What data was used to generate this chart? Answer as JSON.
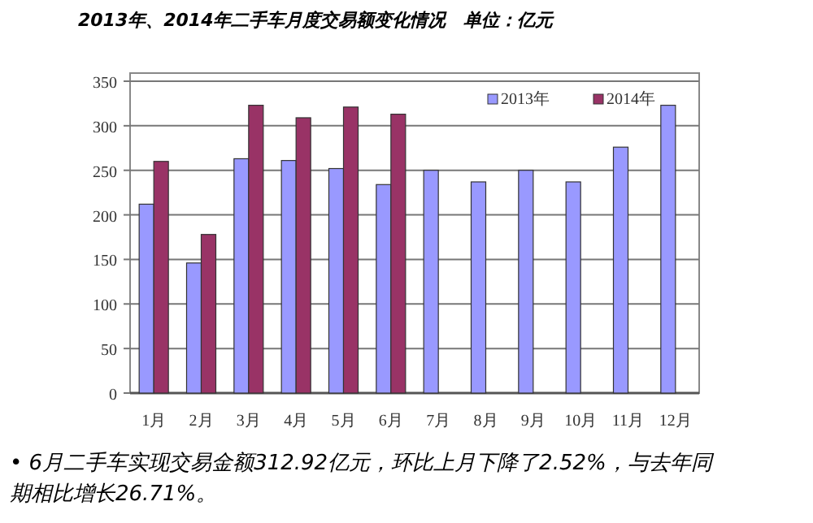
{
  "chart_data": {
    "type": "bar",
    "title": "2013年、2014年二手车月度交易额变化情况",
    "subtitle": "单位：亿元",
    "categories": [
      "1月",
      "2月",
      "3月",
      "4月",
      "5月",
      "6月",
      "7月",
      "8月",
      "9月",
      "10月",
      "11月",
      "12月"
    ],
    "series": [
      {
        "name": "2013年",
        "color": "#9999ff",
        "values": [
          212,
          146,
          263,
          261,
          252,
          234,
          250,
          237,
          250,
          237,
          276,
          323
        ]
      },
      {
        "name": "2014年",
        "color": "#993366",
        "values": [
          260,
          178,
          323,
          309,
          321,
          313,
          null,
          null,
          null,
          null,
          null,
          null
        ]
      }
    ],
    "ylim": [
      0,
      350
    ],
    "yticks": [
      0,
      50,
      100,
      150,
      200,
      250,
      300,
      350
    ],
    "grid": "y",
    "legend": "top right",
    "annotations": [
      "• 6月二手车实现交易金额312.92亿元，环比上月下降了2.52%，与去年同期相比增长26.71%。"
    ]
  }
}
